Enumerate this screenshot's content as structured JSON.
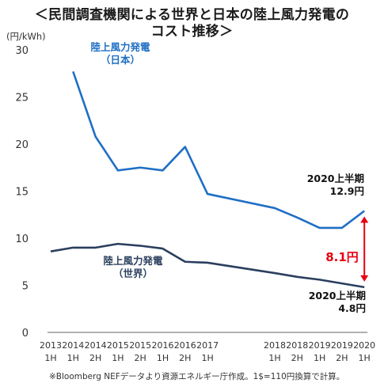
{
  "title_line1": "＜民間調査機関による世界と日本の陸上風力発電の",
  "title_line2": "コスト推移＞",
  "footnote": "※Bloomberg NEFデータより資源エネルギー庁作成。1$=110円換算で計算。",
  "colors": {
    "japan": "#1f6fc4",
    "world": "#2b3f5e",
    "arrow": "#e60012",
    "axis": "#666666"
  },
  "chart_data": {
    "type": "line",
    "ylabel": "(円/kWh)",
    "ylim": [
      0,
      30
    ],
    "yticks": [
      0,
      5,
      10,
      15,
      20,
      25,
      30
    ],
    "grid": false,
    "x_ticks": [
      {
        "year": "2013",
        "half": "1H"
      },
      {
        "year": "2014",
        "half": "1H"
      },
      {
        "year": "2014",
        "half": "2H"
      },
      {
        "year": "2015",
        "half": "1H"
      },
      {
        "year": "2015",
        "half": "2H"
      },
      {
        "year": "2016",
        "half": "1H"
      },
      {
        "year": "2016",
        "half": "2H"
      },
      {
        "year": "2017",
        "half": "1H"
      },
      {
        "year": "",
        "half": ""
      },
      {
        "year": "",
        "half": ""
      },
      {
        "year": "2018",
        "half": "1H"
      },
      {
        "year": "2018",
        "half": "2H"
      },
      {
        "year": "2019",
        "half": "1H"
      },
      {
        "year": "2019",
        "half": "2H"
      },
      {
        "year": "2020",
        "half": "1H"
      }
    ],
    "series": [
      {
        "name": "陸上風力発電（日本）",
        "label_line1": "陸上風力発電",
        "label_line2": "（日本）",
        "color_key": "japan",
        "values": [
          null,
          27.7,
          20.8,
          17.2,
          17.5,
          17.2,
          19.7,
          14.7,
          null,
          null,
          13.2,
          12.2,
          11.1,
          11.1,
          12.9
        ]
      },
      {
        "name": "陸上風力発電（世界）",
        "label_line1": "陸上風力発電",
        "label_line2": "（世界）",
        "color_key": "world",
        "values": [
          8.6,
          9.0,
          9.0,
          9.4,
          9.2,
          8.9,
          7.5,
          7.4,
          null,
          null,
          6.3,
          5.9,
          5.6,
          5.2,
          4.8
        ]
      }
    ],
    "annotations": {
      "japan_end_line1": "2020上半期",
      "japan_end_line2": "12.9円",
      "world_end_line1": "2020上半期",
      "world_end_line2": "4.8円",
      "gap": "8.1円"
    }
  }
}
